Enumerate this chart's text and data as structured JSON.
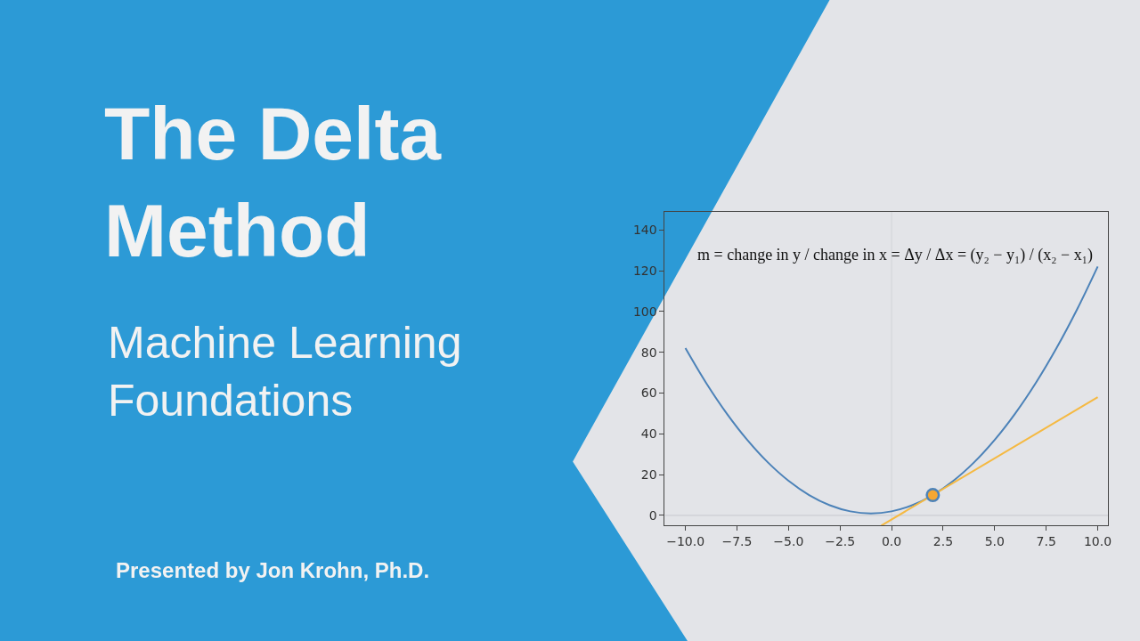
{
  "chart_data": {
    "type": "line",
    "title": "The Delta Method",
    "subtitle": "Machine Learning Foundations",
    "annotations": [
      "m = change in y / change in x = Δy / Δx = (y₂ − y₁) / (x₂ − x₁)",
      "Presented by Jon Krohn, Ph.D."
    ],
    "series": [
      {
        "color": "#4c82b8",
        "x": [
          -10,
          -9,
          -8,
          -7,
          -6,
          -5,
          -4,
          -3,
          -2,
          -1,
          0,
          1,
          2,
          3,
          4,
          5,
          6,
          7,
          8,
          9,
          10
        ],
        "values": [
          82,
          65,
          50,
          37,
          26,
          17,
          10,
          5,
          2,
          1,
          2,
          5,
          10,
          17,
          26,
          37,
          50,
          65,
          82,
          101,
          122
        ]
      },
      {
        "color": "#f5b942",
        "x": [
          -0.5,
          10
        ],
        "values": [
          -5,
          58
        ]
      },
      {
        "type": "scatter",
        "color": "#4c82b8",
        "marker": "circle",
        "x": [
          2
        ],
        "values": [
          10
        ]
      },
      {
        "type": "scatter",
        "color": "#f5a733",
        "marker": "circle",
        "x": [
          2
        ],
        "values": [
          10
        ]
      }
    ],
    "ref_lines": [
      {
        "axis": "x",
        "value": 0,
        "color": "#d2d4d8"
      },
      {
        "axis": "y",
        "value": 0,
        "color": "#c6c8cd"
      }
    ],
    "xlim": [
      -11,
      10.5
    ],
    "xticks": [
      {
        "value": -10,
        "label": "−10.0"
      },
      {
        "value": -7.5,
        "label": "−7.5"
      },
      {
        "value": -5,
        "label": "−5.0"
      },
      {
        "value": -2.5,
        "label": "−2.5"
      },
      {
        "value": 0,
        "label": "0.0"
      },
      {
        "value": 2.5,
        "label": "2.5"
      },
      {
        "value": 5,
        "label": "5.0"
      },
      {
        "value": 7.5,
        "label": "7.5"
      },
      {
        "value": 10,
        "label": "10.0"
      }
    ],
    "ylim": [
      -5,
      149
    ],
    "yticks": [
      0,
      20,
      40,
      60,
      80,
      100,
      120,
      140
    ],
    "grid": false
  }
}
